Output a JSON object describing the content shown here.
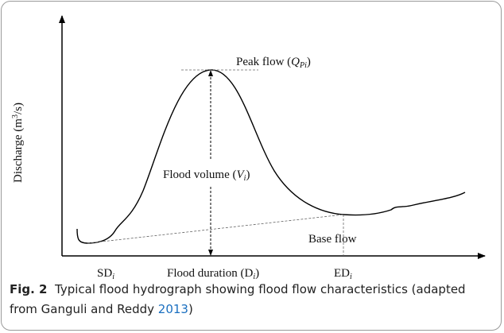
{
  "figure": {
    "y_axis_label": {
      "text": "Discharge (m",
      "sup": "3",
      "after": "/s)"
    },
    "peak_flow": {
      "text": "Peak flow (",
      "var": "Q",
      "sub": "Pi",
      "after": ")"
    },
    "flood_volume": {
      "text": "Flood volume (",
      "var": "V",
      "sub": "i",
      "after": ")"
    },
    "base_flow": "Base flow",
    "start": {
      "text": "SD",
      "sub": "i"
    },
    "end": {
      "text": "ED",
      "sub": "i"
    },
    "duration": {
      "text": "Flood duration (D",
      "sub": "i",
      "after": ")"
    }
  },
  "caption": {
    "label": "Fig. 2",
    "text": "Typical flood hydrograph showing flood flow characteristics (adapted from Ganguli and Reddy ",
    "citation": "2013",
    "after": ")"
  }
}
